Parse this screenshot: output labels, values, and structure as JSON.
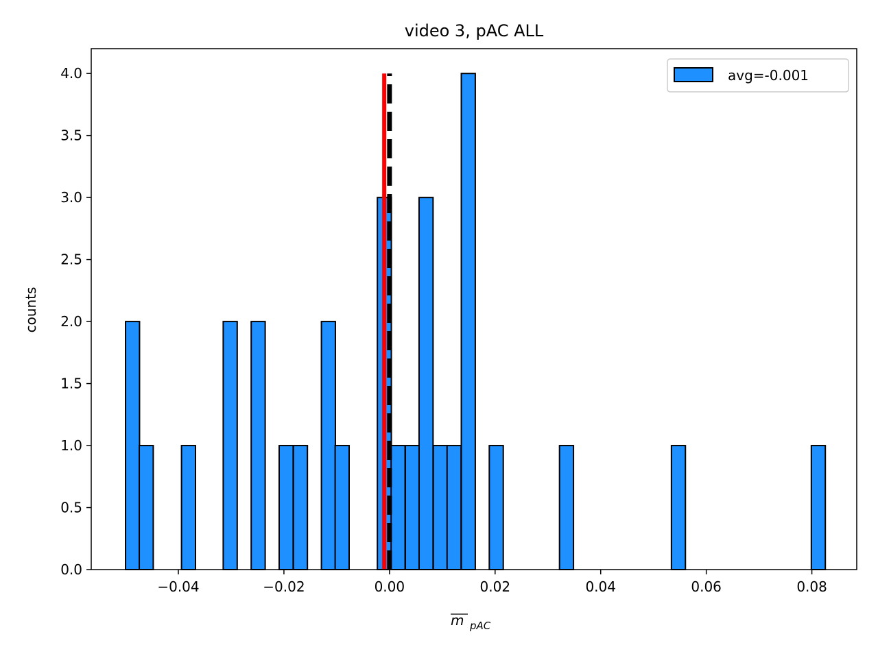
{
  "chart_data": {
    "type": "bar",
    "title": "video 3, pAC ALL",
    "xlabel_main": "m",
    "xlabel_sub": "pAC",
    "ylabel": "counts",
    "xlim": [
      -0.0565,
      0.0885
    ],
    "ylim": [
      0,
      4.2
    ],
    "bin_width": 0.00265,
    "bar_color": "#1e90ff",
    "edge_color": "#000000",
    "x_ticks": [
      -0.04,
      -0.02,
      0.0,
      0.02,
      0.04,
      0.06,
      0.08
    ],
    "x_tick_labels": [
      "−0.04",
      "−0.02",
      "0.00",
      "0.02",
      "0.04",
      "0.06",
      "0.08"
    ],
    "y_ticks": [
      0,
      0.5,
      1.0,
      1.5,
      2.0,
      2.5,
      3.0,
      3.5,
      4.0
    ],
    "y_tick_labels": [
      "0.0",
      "0.5",
      "1.0",
      "1.5",
      "2.0",
      "2.5",
      "3.0",
      "3.5",
      "4.0"
    ],
    "bins": [
      {
        "left": -0.05,
        "count": 2
      },
      {
        "left": -0.0474,
        "count": 1
      },
      {
        "left": -0.0394,
        "count": 1
      },
      {
        "left": -0.0315,
        "count": 2
      },
      {
        "left": -0.0262,
        "count": 2
      },
      {
        "left": -0.0209,
        "count": 1
      },
      {
        "left": -0.0182,
        "count": 1
      },
      {
        "left": -0.0129,
        "count": 2
      },
      {
        "left": -0.0103,
        "count": 1
      },
      {
        "left": -0.0023,
        "count": 3
      },
      {
        "left": 0.0003,
        "count": 1
      },
      {
        "left": 0.003,
        "count": 1
      },
      {
        "left": 0.0056,
        "count": 3
      },
      {
        "left": 0.0083,
        "count": 1
      },
      {
        "left": 0.0109,
        "count": 1
      },
      {
        "left": 0.0136,
        "count": 4
      },
      {
        "left": 0.0189,
        "count": 1
      },
      {
        "left": 0.0322,
        "count": 1
      },
      {
        "left": 0.0534,
        "count": 1
      },
      {
        "left": 0.0799,
        "count": 1
      }
    ],
    "mean_line": {
      "x": -0.001,
      "height": 4,
      "color": "#ff0000"
    },
    "zero_line": {
      "x": 0.0,
      "height": 4,
      "color": "#000000"
    },
    "legend": {
      "label": "avg=-0.001",
      "position": "top-right"
    }
  }
}
